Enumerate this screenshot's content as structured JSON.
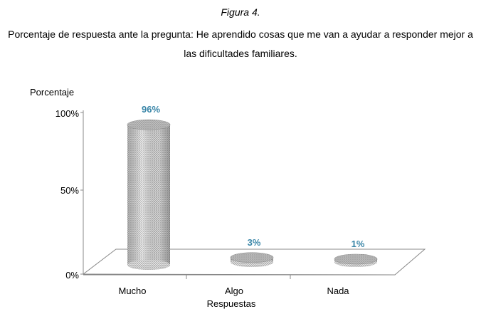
{
  "figure_label": "Figura 4.",
  "figure_title": "Porcentaje de respuesta ante la pregunta: He aprendido cosas que me van a ayudar a responder mejor a las dificultades familiares.",
  "chart_data": {
    "type": "bar",
    "style": "3d-cylinder",
    "title": "",
    "ylabel": "Porcentaje",
    "xlabel": "Respuestas",
    "categories": [
      "Mucho",
      "Algo",
      "Nada"
    ],
    "values": [
      96,
      3,
      1
    ],
    "data_labels": [
      "96%",
      "3%",
      "1%"
    ],
    "yticks": [
      "0%",
      "50%",
      "100%"
    ],
    "ylim": [
      0,
      100
    ],
    "grid": false,
    "legend": "none",
    "colors": {
      "bar": "#c8c8c8",
      "bar_dark": "#8f8f8f",
      "label": "#3a86a8"
    }
  }
}
